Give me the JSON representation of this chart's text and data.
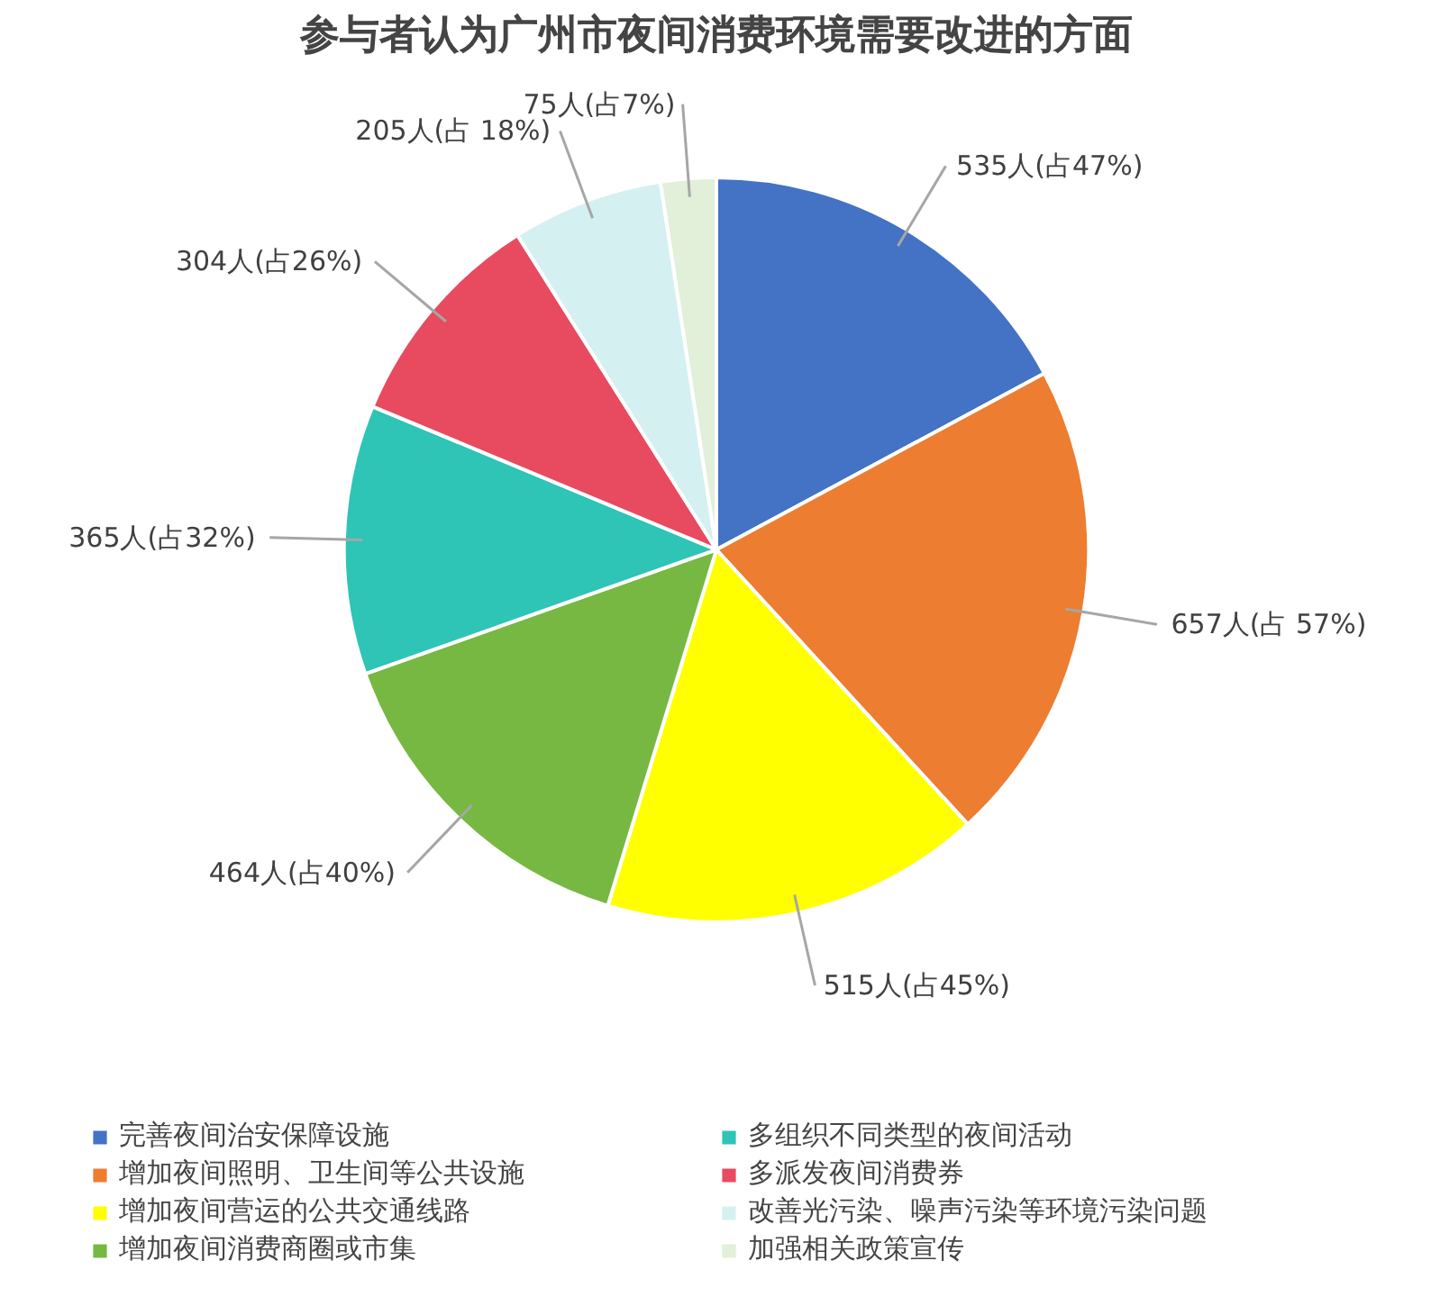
{
  "chart_data": {
    "type": "pie",
    "title": "参与者认为广州市夜间消费环境需要改进的方面",
    "categories": [
      "完善夜间治安保障设施",
      "增加夜间照明、卫生间等公共设施",
      "增加夜间营运的公共交通线路",
      "增加夜间消费商圈或市集",
      "多组织不同类型的夜间活动",
      "多派发夜间消费券",
      "改善光污染、噪声污染等环境污染问题",
      "加强相关政策宣传"
    ],
    "values": [
      535,
      657,
      515,
      464,
      365,
      304,
      205,
      75
    ],
    "colors": [
      "#4472c4",
      "#ed7d31",
      "#ffff00",
      "#77b843",
      "#2ec4b6",
      "#e84a5f",
      "#d5f0f0",
      "#e2efd9"
    ],
    "value_labels": [
      "535人(占47%)",
      "657人(占 57%)",
      "515人(占45%)",
      "464人(占40%)",
      "365人(占32%)",
      "304人(占26%)",
      "205人(占 18%)",
      "75人(占7%)"
    ],
    "legend": "bottom"
  }
}
